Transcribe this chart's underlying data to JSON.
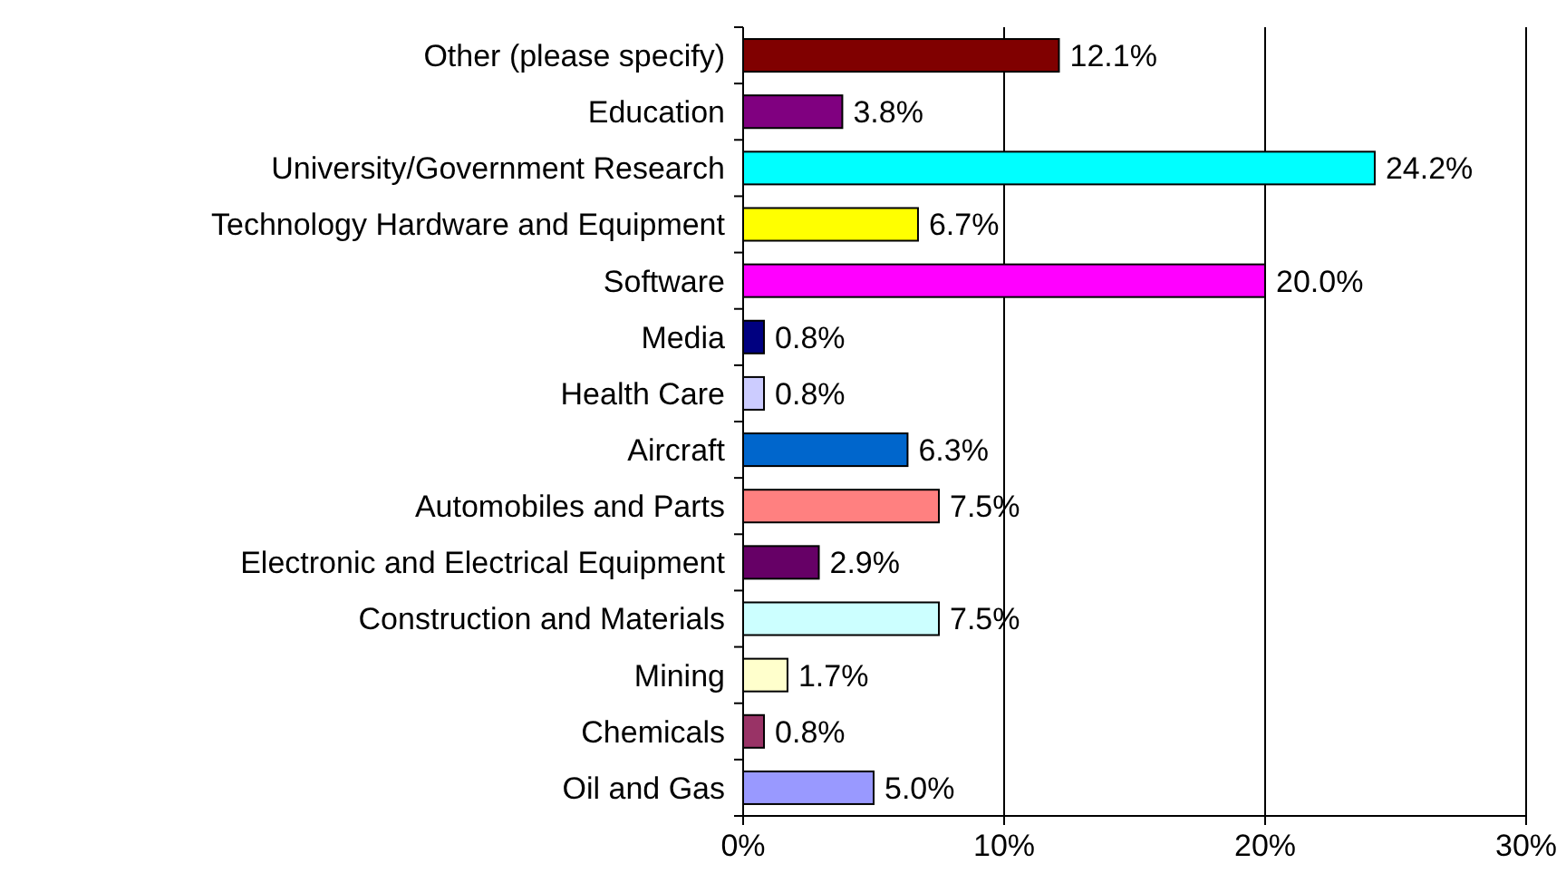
{
  "chart_data": {
    "type": "bar",
    "orientation": "horizontal",
    "categories": [
      "Other (please specify)",
      "Education",
      "University/Government Research",
      "Technology Hardware and Equipment",
      "Software",
      "Media",
      "Health Care",
      "Aircraft",
      "Automobiles and Parts",
      "Electronic and Electrical Equipment",
      "Construction and Materials",
      "Mining",
      "Chemicals",
      "Oil and Gas"
    ],
    "values": [
      12.1,
      3.8,
      24.2,
      6.7,
      20.0,
      0.8,
      0.8,
      6.3,
      7.5,
      2.9,
      7.5,
      1.7,
      0.8,
      5.0
    ],
    "value_labels": [
      "12.1%",
      "3.8%",
      "24.2%",
      "6.7%",
      "20.0%",
      "0.8%",
      "0.8%",
      "6.3%",
      "7.5%",
      "2.9%",
      "7.5%",
      "1.7%",
      "0.8%",
      "5.0%"
    ],
    "colors": [
      "#800000",
      "#800080",
      "#00ffff",
      "#ffff00",
      "#ff00ff",
      "#000080",
      "#ccccff",
      "#0066cc",
      "#ff8080",
      "#660066",
      "#ccffff",
      "#ffffcc",
      "#993366",
      "#9999ff"
    ],
    "xlim": [
      0,
      30
    ],
    "xticks": [
      {
        "value": 0,
        "label": "0%"
      },
      {
        "value": 10,
        "label": "10%"
      },
      {
        "value": 20,
        "label": "20%"
      },
      {
        "value": 30,
        "label": "30%"
      }
    ],
    "grid": "x"
  }
}
